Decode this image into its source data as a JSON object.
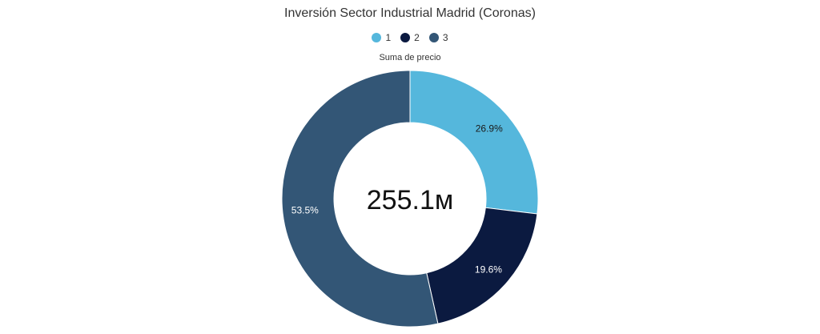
{
  "chart_data": {
    "type": "pie",
    "title": "Inversión Sector Industrial Madrid (Coronas)",
    "metric_label": "Suma de precio",
    "center_total": "255.1м",
    "legend_position": "top",
    "categories": [
      "1",
      "2",
      "3"
    ],
    "values": [
      26.9,
      19.6,
      53.5
    ],
    "labels": [
      "26.9%",
      "19.6%",
      "53.5%"
    ],
    "colors": [
      "#55b7dc",
      "#0b1a40",
      "#335676"
    ],
    "label_colors": [
      "#1a1a1a",
      "#ffffff",
      "#ffffff"
    ]
  }
}
